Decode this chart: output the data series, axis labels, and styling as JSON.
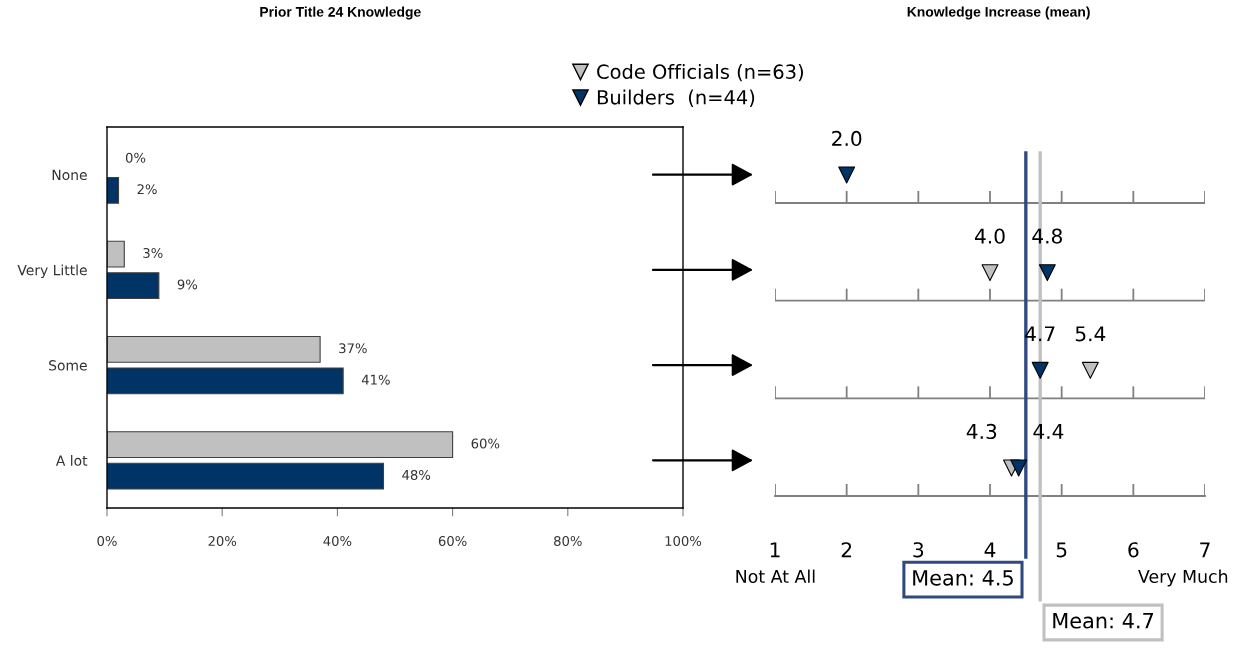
{
  "chart_data": [
    {
      "type": "bar",
      "orientation": "horizontal",
      "title": "Prior Title 24 Knowledge",
      "categories": [
        "None",
        "Very Little",
        "Some",
        "A lot"
      ],
      "series": [
        {
          "color": "#c0c0c0",
          "values": [
            0,
            3,
            37,
            60
          ],
          "value_labels": [
            "0%",
            "3%",
            "37%",
            "60%"
          ]
        },
        {
          "color": "#003366",
          "values": [
            2,
            9,
            41,
            48
          ],
          "value_labels": [
            "2%",
            "9%",
            "41%",
            "48%"
          ]
        }
      ],
      "xlim": [
        0,
        100
      ],
      "xticks": [
        {
          "value": 0,
          "label": "0%"
        },
        {
          "value": 20,
          "label": "20%"
        },
        {
          "value": 40,
          "label": "40%"
        },
        {
          "value": 60,
          "label": "60%"
        },
        {
          "value": 80,
          "label": "80%"
        },
        {
          "value": 100,
          "label": "100%"
        }
      ]
    },
    {
      "type": "scatter",
      "orientation": "horizontal",
      "title": "Knowledge Increase (mean)",
      "categories": [
        null,
        null,
        null,
        null
      ],
      "series": [
        {
          "name": "Code Officials (n=63)",
          "color": "#c0c0c0",
          "values": [
            null,
            4.0,
            5.4,
            4.3
          ],
          "value_labels": [
            null,
            "4.0",
            "5.4",
            "4.3"
          ]
        },
        {
          "name": "Builders  (n=44)",
          "color": "#003366",
          "values": [
            2.0,
            4.8,
            4.7,
            4.4
          ],
          "value_labels": [
            "2.0",
            "4.8",
            "4.7",
            "4.4"
          ]
        }
      ],
      "xlim": [
        1,
        7
      ],
      "xticks": [
        1,
        2,
        3,
        4,
        5,
        6,
        7
      ],
      "marker": "triangle",
      "grid": "y",
      "legend": "top left",
      "tick_labels": "x",
      "ref_lines": [
        {
          "axis": "x",
          "value": 4.5,
          "label": "Mean: 4.5",
          "color": "#2f4a80"
        },
        {
          "axis": "x",
          "value": 4.7,
          "label": "Mean: 4.7",
          "color": "#c0c0c0"
        }
      ],
      "annotations": [
        "Not At All",
        "Very Much"
      ]
    }
  ]
}
